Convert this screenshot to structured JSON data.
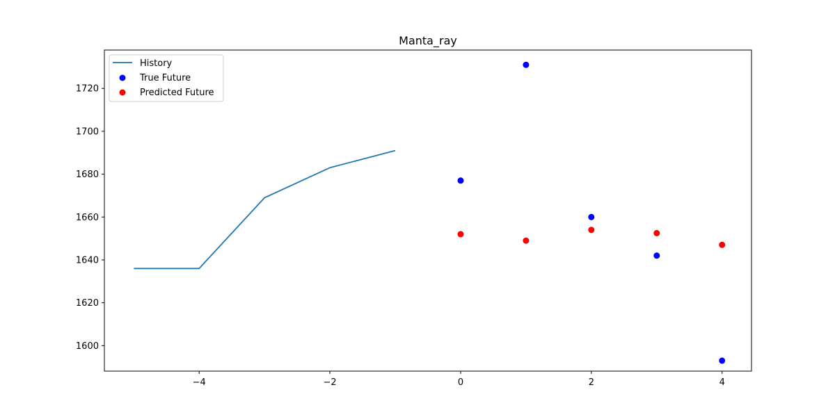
{
  "chart_data": {
    "type": "line",
    "title": "Manta_ray",
    "xlabel": "",
    "ylabel": "",
    "xlim": [
      -5.45,
      4.45
    ],
    "ylim": [
      1588.1,
      1737.9
    ],
    "x_ticks": [
      -4,
      -2,
      0,
      2,
      4
    ],
    "x_tick_labels": [
      "−4",
      "−2",
      "0",
      "2",
      "4"
    ],
    "y_ticks": [
      1600,
      1620,
      1640,
      1660,
      1680,
      1700,
      1720
    ],
    "y_tick_labels": [
      "1600",
      "1620",
      "1640",
      "1660",
      "1680",
      "1700",
      "1720"
    ],
    "grid": false,
    "legend_position": "top-left",
    "series": [
      {
        "name": "History",
        "kind": "line",
        "color": "#1f77b4",
        "x": [
          -5,
          -4,
          -3,
          -2,
          -1
        ],
        "y": [
          1636,
          1636,
          1669,
          1683,
          1691
        ]
      },
      {
        "name": "True Future",
        "kind": "scatter",
        "color": "#0000ff",
        "x": [
          0,
          1,
          2,
          3,
          4
        ],
        "y": [
          1677,
          1731,
          1660,
          1642,
          1593
        ]
      },
      {
        "name": "Predicted Future",
        "kind": "scatter",
        "color": "#ff0000",
        "x": [
          0,
          1,
          2,
          3,
          4
        ],
        "y": [
          1652,
          1649,
          1654,
          1652.5,
          1647
        ]
      }
    ]
  }
}
